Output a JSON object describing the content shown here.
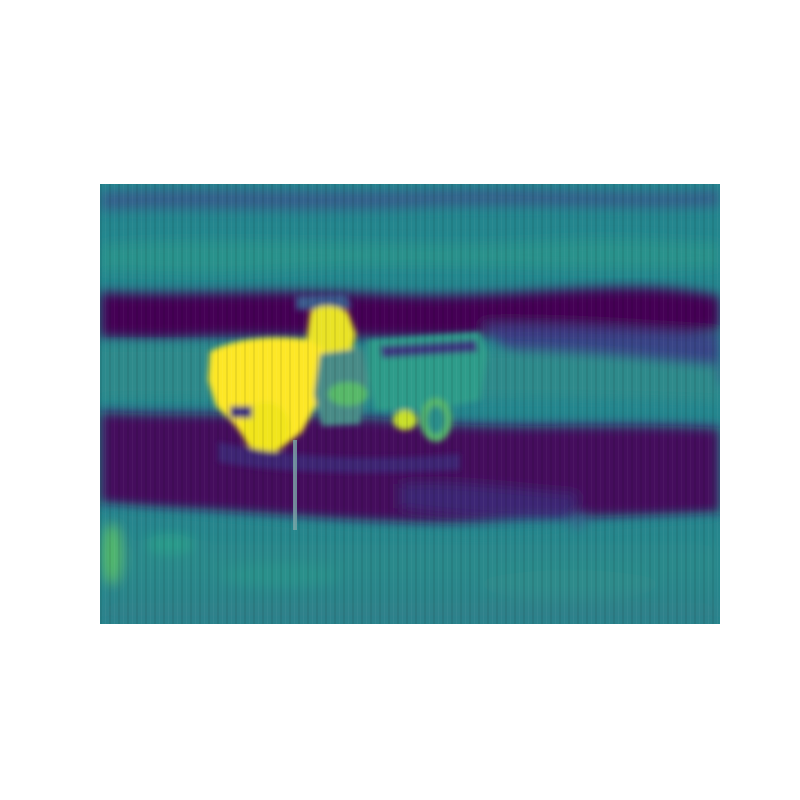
{
  "image": {
    "kind": "heatmap-rendered photo",
    "colormap": "viridis",
    "colors": {
      "low": "#440154",
      "low_mid": "#3b2f7f",
      "mid": "#24868e",
      "mid_light": "#2fa88a",
      "high": "#fde725",
      "high_mid": "#b8de29",
      "background": "#ffffff"
    },
    "subject": "tractor-icon",
    "ground": "field-icon"
  }
}
